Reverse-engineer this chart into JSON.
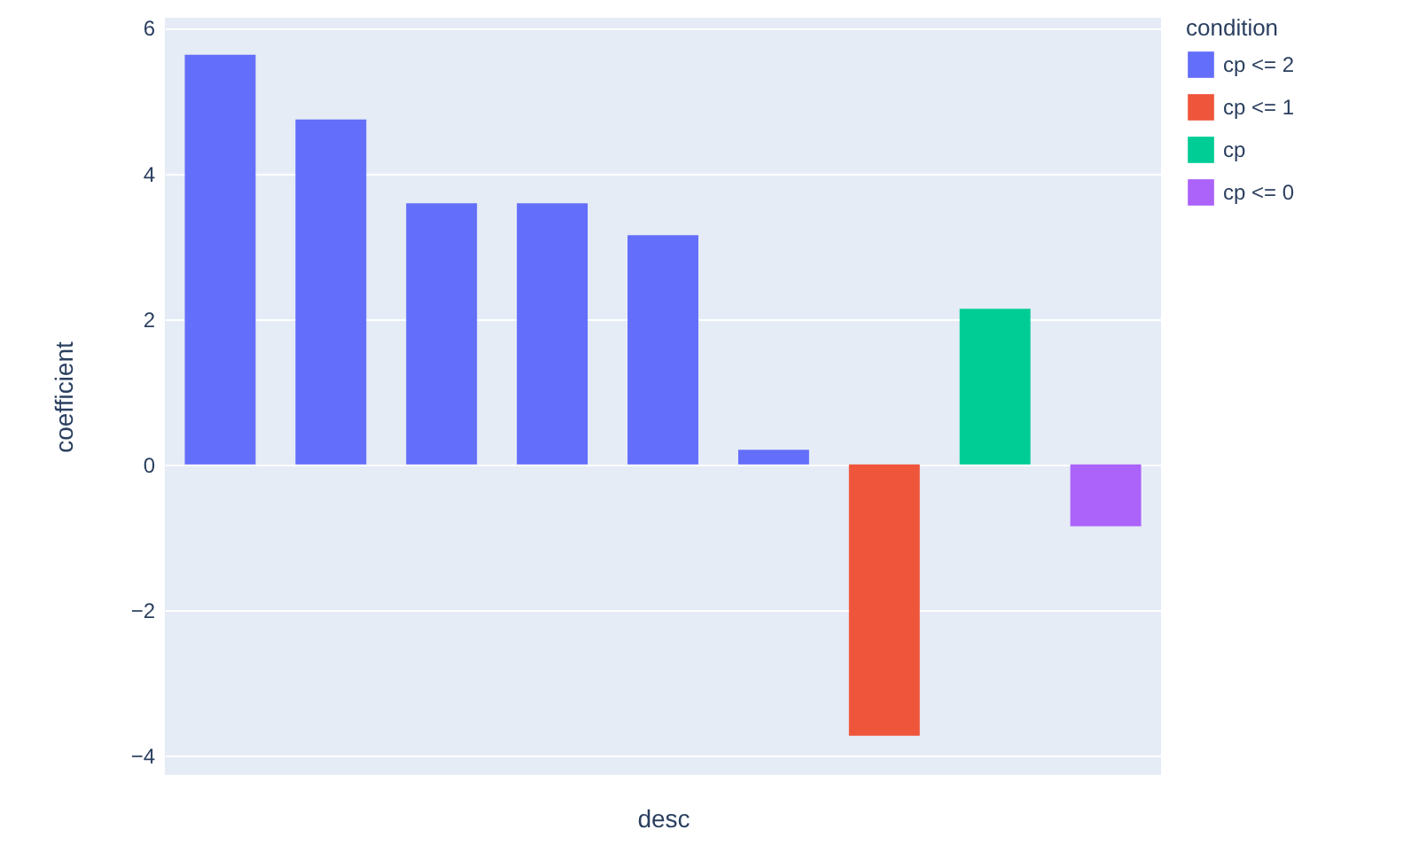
{
  "chart_data": {
    "type": "bar",
    "xlabel": "desc",
    "ylabel": "coefficient",
    "legend_title": "condition",
    "categories": [
      null,
      null,
      null,
      null,
      null,
      null,
      null,
      null,
      null
    ],
    "series": [
      {
        "name": "cp <= 2",
        "color": "#636efa",
        "values": [
          5.63,
          4.74,
          3.59,
          3.59,
          3.15,
          0.2,
          null,
          null,
          null
        ]
      },
      {
        "name": "cp <= 1",
        "color": "#ef553b",
        "values": [
          null,
          null,
          null,
          null,
          null,
          null,
          -3.73,
          null,
          null
        ]
      },
      {
        "name": "cp",
        "color": "#00cc96",
        "values": [
          null,
          null,
          null,
          null,
          null,
          null,
          null,
          2.14,
          null
        ]
      },
      {
        "name": "cp <= 0",
        "color": "#ab63fa",
        "values": [
          null,
          null,
          null,
          null,
          null,
          null,
          null,
          null,
          -0.85
        ]
      }
    ],
    "ylim": [
      -4.27,
      6.14
    ],
    "yticks": [
      -4,
      -2,
      0,
      2,
      4,
      6
    ],
    "grid": "y",
    "legend": "top right"
  }
}
